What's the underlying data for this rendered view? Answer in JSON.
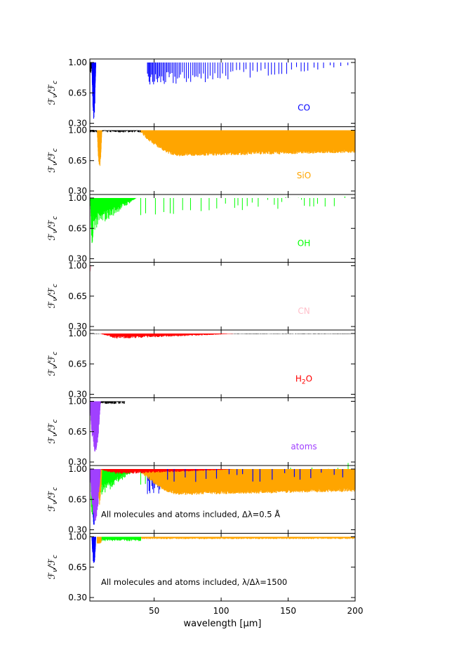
{
  "chart_data": {
    "type": "line",
    "xlabel": "wavelength [μm]",
    "x_ticks": [
      50,
      100,
      150,
      200
    ],
    "xlim": [
      2,
      200
    ],
    "ylim": [
      0.3,
      1.0
    ],
    "y_ticks": [
      1.0,
      0.65,
      0.3
    ],
    "y_tick_labels": [
      "1.00",
      "0.65",
      "0.30"
    ],
    "ylabel_base": "ℱ",
    "ylabel_sub": "ν",
    "ylabel_mid": "/ℱ",
    "ylabel_sub2": "c",
    "panels": [
      {
        "name": "CO",
        "label": "CO",
        "color": "#0000ff",
        "features": [
          {
            "kind": "deep",
            "x0": 3.5,
            "x1": 6.5,
            "min": 0.33
          },
          {
            "kind": "forest",
            "x0": 45,
            "x1": 200,
            "depth_start": 0.7,
            "depth_end": 0.95,
            "spacing_start": 0.6,
            "spacing_end": 4.5
          }
        ],
        "black_band": [
          [
            2,
            5.5,
            0.85
          ]
        ]
      },
      {
        "name": "SiO",
        "label": "SiO",
        "color": "#ffa500",
        "features": [
          {
            "kind": "deep",
            "x0": 7.5,
            "x1": 11,
            "min": 0.57
          },
          {
            "kind": "dense",
            "x0": 40,
            "x1": 200,
            "floor_start": 1.0,
            "floor_mid": 0.74,
            "floor_end": 0.78
          }
        ],
        "black_band": [
          [
            2,
            200,
            0.975
          ],
          [
            9,
            10,
            0.9
          ]
        ]
      },
      {
        "name": "OH",
        "label": "OH",
        "color": "#00ff00",
        "features": [
          {
            "kind": "deep",
            "x0": 2.5,
            "x1": 5,
            "min": 0.46
          },
          {
            "kind": "comb",
            "x0": 5,
            "x1": 40,
            "min": 0.62
          },
          {
            "kind": "sparse",
            "x0": 40,
            "x1": 200,
            "depth": 0.8
          }
        ],
        "black_band": [
          [
            3,
            25,
            0.95
          ]
        ]
      },
      {
        "name": "CN",
        "label": "CN",
        "color": "#ffc0cb",
        "features": [
          {
            "kind": "deep",
            "x0": 2,
            "x1": 3,
            "min": 0.93
          }
        ],
        "black_band": []
      },
      {
        "name": "H2O",
        "label": "H",
        "label_sub": "2",
        "label_tail": "O",
        "color": "#ff0000",
        "features": [
          {
            "kind": "shallow",
            "x0": 10,
            "x1": 110,
            "min": 0.94
          }
        ],
        "black_band": [
          [
            2,
            200,
            0.995
          ]
        ]
      },
      {
        "name": "atoms",
        "label": "atoms",
        "color": "#a040ff",
        "features": [
          {
            "kind": "deep",
            "x0": 2,
            "x1": 10,
            "min": 0.4
          }
        ],
        "black_band": [
          [
            2,
            28,
            0.97
          ]
        ]
      }
    ],
    "combined_panels": [
      {
        "annotation_pre": "All molecules and atoms included, Δλ=0.5 ",
        "annotation_unit": "Å",
        "resolution": "high"
      },
      {
        "annotation_pre": "All molecules and atoms included, λ/Δλ=1500",
        "annotation_unit": "",
        "resolution": "low"
      }
    ]
  }
}
